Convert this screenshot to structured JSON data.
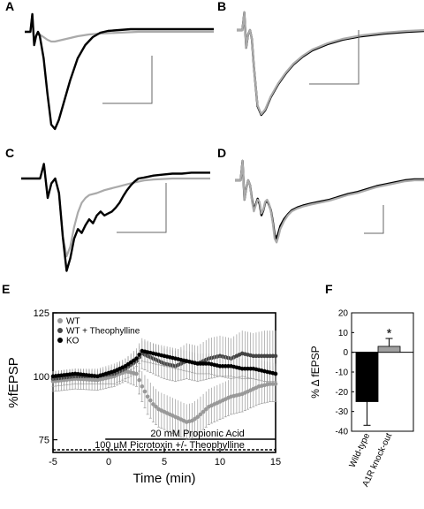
{
  "colors": {
    "wt": "#999999",
    "wt_theo": "#444444",
    "ko": "#000000",
    "gray_bar": "#a0a0a0",
    "black_bar": "#000000"
  },
  "chart_data": [
    {
      "panel": "A",
      "type": "line",
      "series": [
        {
          "trace": "A-gray",
          "x": [
            0,
            3,
            4,
            5,
            6,
            7,
            8,
            10,
            12,
            14,
            16,
            20,
            24,
            28,
            34,
            40,
            50,
            60,
            75,
            100
          ],
          "values": [
            0,
            0,
            20,
            -15,
            -5,
            0,
            -3,
            -6,
            -9,
            -11,
            -11,
            -9,
            -7,
            -5,
            -3,
            -2,
            -1,
            0,
            0,
            0
          ]
        },
        {
          "trace": "A-black",
          "x": [
            0,
            3,
            4,
            5,
            6,
            7,
            8,
            10,
            12,
            14,
            16,
            18,
            20,
            24,
            28,
            32,
            36,
            40,
            44,
            50,
            56,
            62,
            70,
            80,
            90,
            100
          ],
          "values": [
            0,
            0,
            20,
            -15,
            -5,
            0,
            -5,
            -30,
            -70,
            -105,
            -110,
            -100,
            -85,
            -55,
            -30,
            -15,
            -6,
            -1,
            1,
            2,
            3,
            3,
            3,
            3,
            3,
            3
          ]
        }
      ]
    },
    {
      "panel": "B",
      "type": "line",
      "series": [
        {
          "trace": "B-gray",
          "x": [
            0,
            3,
            4,
            5,
            6,
            7,
            8,
            9,
            11,
            13,
            15,
            18,
            22,
            26,
            30,
            35,
            40,
            48,
            56,
            66,
            78,
            90,
            100
          ],
          "values": [
            0,
            0,
            20,
            -20,
            -5,
            0,
            -10,
            -40,
            -85,
            -95,
            -90,
            -75,
            -60,
            -48,
            -38,
            -29,
            -22,
            -15,
            -10,
            -6,
            -3,
            -1,
            0
          ]
        },
        {
          "trace": "B-black",
          "x": [
            0,
            3,
            4,
            5,
            6,
            7,
            8,
            9,
            11,
            13,
            15,
            18,
            22,
            26,
            30,
            35,
            40,
            48,
            56,
            66,
            78,
            90,
            100
          ],
          "values": [
            0,
            0,
            20,
            -20,
            -5,
            0,
            -10,
            -40,
            -86,
            -96,
            -91,
            -76,
            -61,
            -49,
            -39,
            -30,
            -23,
            -16,
            -11,
            -7,
            -4,
            -2,
            -1
          ]
        }
      ]
    },
    {
      "panel": "C",
      "type": "line",
      "series": [
        {
          "trace": "C-gray",
          "x": [
            0,
            10,
            12,
            14,
            16,
            18,
            20,
            22,
            24,
            26,
            28,
            30,
            32,
            34,
            36,
            40,
            44,
            48,
            52,
            56,
            60,
            65,
            70,
            80,
            90,
            100
          ],
          "values": [
            0,
            0,
            15,
            -20,
            -5,
            0,
            -15,
            -60,
            -80,
            -70,
            -50,
            -35,
            -25,
            -20,
            -17,
            -15,
            -12,
            -10,
            -8,
            -6,
            -4,
            -2,
            -1,
            0,
            0,
            0
          ]
        },
        {
          "trace": "C-black",
          "x": [
            0,
            10,
            12,
            14,
            16,
            18,
            20,
            22,
            24,
            26,
            28,
            30,
            32,
            34,
            36,
            38,
            40,
            42,
            44,
            46,
            48,
            50,
            52,
            54,
            56,
            58,
            60,
            62,
            65,
            70,
            75,
            80,
            85,
            90,
            100
          ],
          "values": [
            0,
            0,
            15,
            -20,
            -5,
            0,
            -15,
            -60,
            -95,
            -82,
            -62,
            -52,
            -56,
            -48,
            -42,
            -46,
            -38,
            -34,
            -38,
            -36,
            -34,
            -30,
            -25,
            -18,
            -12,
            -7,
            -3,
            0,
            1,
            3,
            4,
            5,
            5,
            6,
            6
          ]
        }
      ]
    },
    {
      "panel": "D",
      "type": "line",
      "series": [
        {
          "trace": "D-gray",
          "x": [
            0,
            3,
            4,
            5,
            6,
            7,
            8,
            9,
            10,
            11,
            12,
            13,
            14,
            15,
            16,
            17,
            18,
            19,
            20,
            21,
            22,
            23,
            24,
            26,
            28,
            30,
            33,
            36,
            40,
            45,
            50,
            55,
            60,
            65,
            70,
            75,
            80,
            85,
            90,
            95,
            100
          ],
          "values": [
            0,
            0,
            20,
            -20,
            -8,
            0,
            -5,
            -22,
            -32,
            -26,
            -20,
            -22,
            -34,
            -30,
            -22,
            -20,
            -24,
            -32,
            -44,
            -60,
            -64,
            -58,
            -50,
            -42,
            -36,
            -32,
            -29,
            -27,
            -25,
            -23,
            -21,
            -18,
            -15,
            -13,
            -10,
            -7,
            -5,
            -3,
            -1,
            0,
            0
          ]
        },
        {
          "trace": "D-black",
          "x": [
            0,
            3,
            4,
            5,
            6,
            7,
            8,
            9,
            10,
            11,
            12,
            13,
            14,
            15,
            16,
            17,
            18,
            19,
            20,
            21,
            22,
            23,
            24,
            26,
            28,
            30,
            33,
            36,
            40,
            45,
            50,
            55,
            60,
            65,
            70,
            75,
            80,
            85,
            90,
            95,
            100
          ],
          "values": [
            0,
            0,
            20,
            -20,
            -8,
            0,
            -5,
            -20,
            -30,
            -25,
            -19,
            -24,
            -36,
            -31,
            -23,
            -21,
            -25,
            -31,
            -42,
            -56,
            -60,
            -54,
            -47,
            -40,
            -35,
            -31,
            -28,
            -26,
            -24,
            -22,
            -20,
            -17,
            -14,
            -12,
            -9,
            -6,
            -4,
            -2,
            0,
            1,
            1
          ]
        }
      ]
    },
    {
      "panel": "E",
      "type": "scatter",
      "xlabel": "Time (min)",
      "ylabel": "%fEPSP",
      "xlim": [
        -5,
        15
      ],
      "ylim": [
        70,
        125
      ],
      "xticks": [
        -5,
        0,
        5,
        10,
        15
      ],
      "yticks": [
        75,
        100,
        125
      ],
      "legend": [
        "WT",
        "WT + Theophylline",
        "KO"
      ],
      "annotations": {
        "propionic": "20 mM Propionic Acid",
        "picrotoxin": "100 µM Picrotoxin +/- Theophylline"
      },
      "bar_ranges": {
        "propionic": [
          -0.3,
          15
        ],
        "picrotoxin": [
          -5,
          15
        ]
      },
      "series": [
        {
          "name": "WT",
          "x": [
            -5,
            -3,
            -1,
            0.5,
            1.5,
            2.5,
            3,
            3.5,
            4,
            4.5,
            5,
            5.5,
            6,
            6.5,
            7,
            7.5,
            8,
            8.5,
            9,
            9.5,
            10,
            10.5,
            11,
            11.5,
            12,
            12.5,
            13,
            13.5,
            14,
            14.5,
            15
          ],
          "values": [
            98,
            99,
            98.5,
            100,
            102,
            101,
            96,
            92,
            89,
            87,
            86,
            85,
            84,
            83,
            82,
            82.5,
            84,
            86,
            88,
            89,
            90,
            91,
            92,
            92.5,
            93,
            94,
            95,
            96,
            96.5,
            97,
            97
          ],
          "errors": [
            4,
            4,
            4,
            4,
            4,
            5,
            6,
            7,
            7,
            7,
            7,
            7,
            7,
            7,
            7,
            7,
            7,
            7,
            7,
            7,
            7,
            7,
            7,
            7,
            7,
            7,
            7,
            7,
            7,
            7,
            7
          ]
        },
        {
          "name": "WT + Theophylline",
          "x": [
            -5,
            -3,
            -1,
            0.5,
            1.5,
            2.5,
            3,
            4,
            5,
            6,
            7,
            8,
            9,
            10,
            11,
            12,
            13,
            14,
            15
          ],
          "values": [
            99,
            100,
            100,
            101,
            103,
            106,
            109,
            107,
            105,
            104,
            106,
            105,
            107,
            108,
            107,
            109,
            108,
            108,
            108
          ],
          "errors": [
            3,
            3,
            3,
            4,
            4,
            5,
            6,
            6,
            6,
            6,
            7,
            7,
            8,
            8,
            8,
            9,
            9,
            10,
            10
          ]
        },
        {
          "name": "KO",
          "x": [
            -5,
            -3,
            -1,
            0.5,
            1.5,
            2.5,
            3,
            4,
            5,
            6,
            7,
            8,
            9,
            10,
            11,
            12,
            13,
            14,
            15
          ],
          "values": [
            100,
            101,
            100,
            102,
            104,
            107,
            110,
            109,
            108,
            107,
            106,
            105,
            105,
            104,
            104,
            103,
            103,
            102,
            101
          ],
          "errors": [
            2,
            2,
            2,
            2,
            3,
            3,
            4,
            4,
            4,
            4,
            4,
            4,
            4,
            4,
            4,
            4,
            4,
            4,
            4
          ]
        }
      ]
    },
    {
      "panel": "F",
      "type": "bar",
      "ylabel": "% Δ fEPSP",
      "ylim": [
        -40,
        20
      ],
      "yticks": [
        -40,
        -30,
        -20,
        -10,
        0,
        10,
        20
      ],
      "categories": [
        "Wild-type",
        "A1R knock-out"
      ],
      "values": [
        -25,
        3
      ],
      "errors": [
        12,
        4
      ],
      "significance": "*"
    }
  ]
}
